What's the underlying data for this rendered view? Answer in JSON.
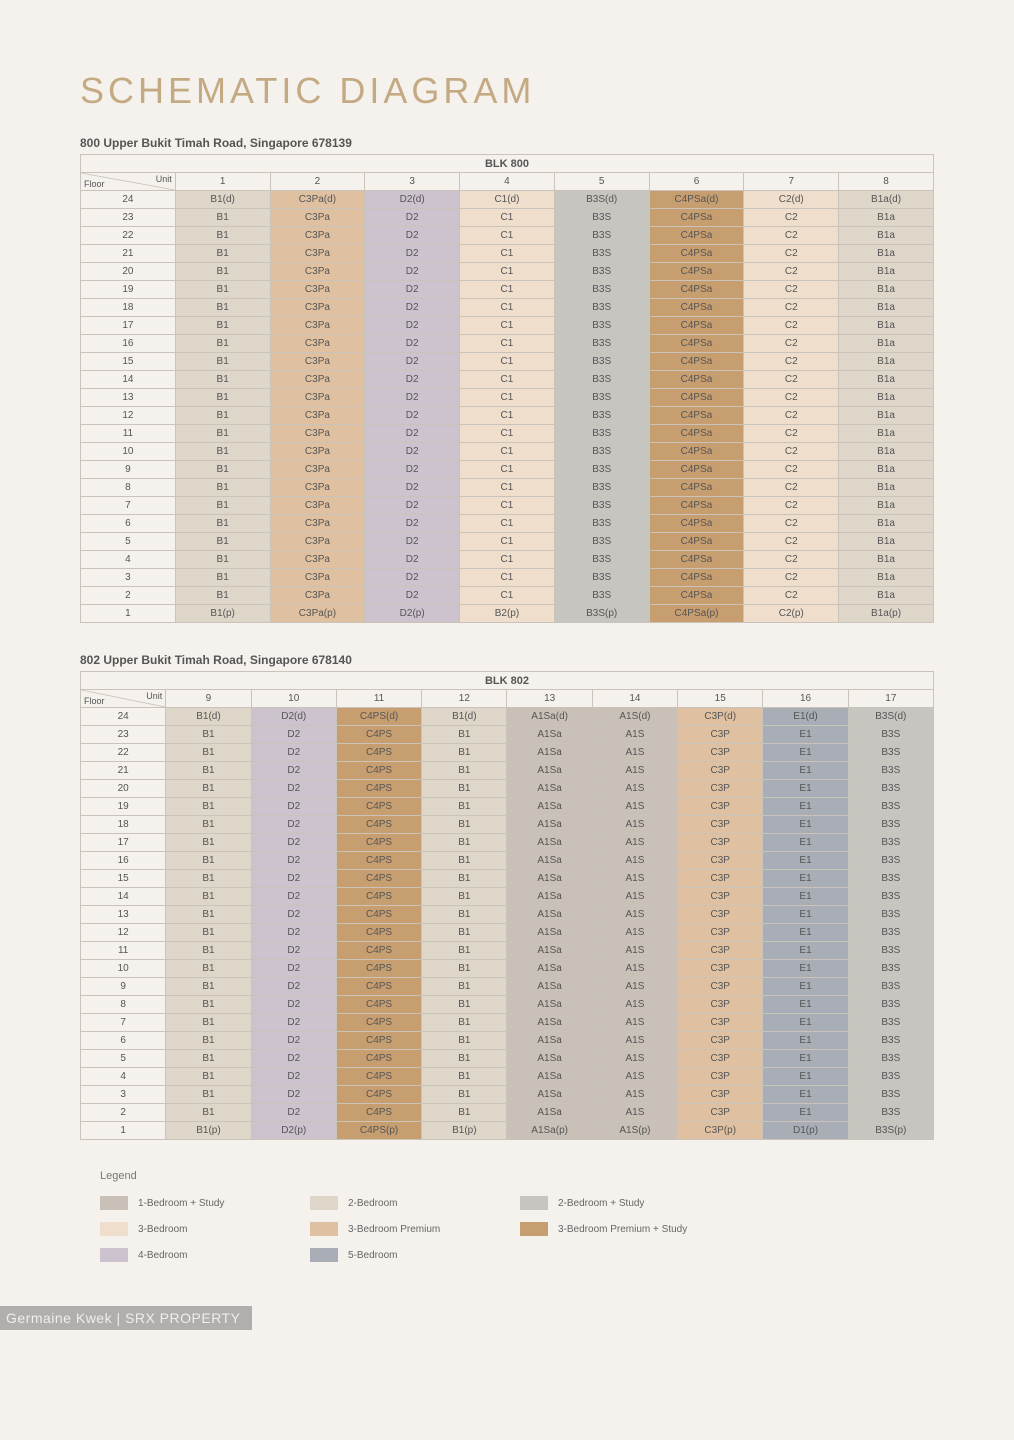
{
  "title": "SCHEMATIC DIAGRAM",
  "colors": {
    "page_bg": "#f5f2ed",
    "title": "#c4aa83",
    "border": "#c9c3b9",
    "text": "#555555"
  },
  "unitTypeColors": {
    "A": "#c9c1b7",
    "B": "#ded6c9",
    "BS": "#c7c5c0",
    "C": "#efdecb",
    "CP": "#dfc0a0",
    "CPS": "#c79e70",
    "D": "#cdc3cf",
    "E": "#a9adb6"
  },
  "legend": [
    {
      "colorKey": "A",
      "label": "1-Bedroom + Study"
    },
    {
      "colorKey": "B",
      "label": "2-Bedroom"
    },
    {
      "colorKey": "BS",
      "label": "2-Bedroom + Study"
    },
    {
      "colorKey": "C",
      "label": "3-Bedroom"
    },
    {
      "colorKey": "CP",
      "label": "3-Bedroom Premium"
    },
    {
      "colorKey": "CPS",
      "label": "3-Bedroom Premium + Study"
    },
    {
      "colorKey": "D",
      "label": "4-Bedroom"
    },
    {
      "colorKey": "E",
      "label": "5-Bedroom"
    }
  ],
  "cornerLabels": {
    "floor": "Floor",
    "unit": "Unit"
  },
  "tables": [
    {
      "address": "800 Upper Bukit Timah Road, Singapore 678139",
      "blk": "BLK 800",
      "units": [
        "1",
        "2",
        "3",
        "4",
        "5",
        "6",
        "7",
        "8"
      ],
      "topFloor": 24,
      "bottomFloor": 1,
      "columns": [
        {
          "type": "B",
          "base": "B1",
          "top": "B1(d)",
          "bot": "B1(p)"
        },
        {
          "type": "CP",
          "base": "C3Pa",
          "top": "C3Pa(d)",
          "bot": "C3Pa(p)"
        },
        {
          "type": "D",
          "base": "D2",
          "top": "D2(d)",
          "bot": "D2(p)"
        },
        {
          "type": "C",
          "base": "C1",
          "top": "C1(d)",
          "bot": "B2(p)"
        },
        {
          "type": "BS",
          "base": "B3S",
          "top": "B3S(d)",
          "bot": "B3S(p)"
        },
        {
          "type": "CPS",
          "base": "C4PSa",
          "top": "C4PSa(d)",
          "bot": "C4PSa(p)"
        },
        {
          "type": "C",
          "base": "C2",
          "top": "C2(d)",
          "bot": "C2(p)"
        },
        {
          "type": "B",
          "base": "B1a",
          "top": "B1a(d)",
          "bot": "B1a(p)"
        }
      ]
    },
    {
      "address": "802 Upper Bukit Timah Road, Singapore 678140",
      "blk": "BLK 802",
      "units": [
        "9",
        "10",
        "11",
        "12",
        "13",
        "14",
        "15",
        "16",
        "17"
      ],
      "topFloor": 24,
      "bottomFloor": 1,
      "columns": [
        {
          "type": "B",
          "base": "B1",
          "top": "B1(d)",
          "bot": "B1(p)"
        },
        {
          "type": "D",
          "base": "D2",
          "top": "D2(d)",
          "bot": "D2(p)"
        },
        {
          "type": "CPS",
          "base": "C4PS",
          "top": "C4PS(d)",
          "bot": "C4PS(p)"
        },
        {
          "type": "B",
          "base": "B1",
          "top": "B1(d)",
          "bot": "B1(p)"
        },
        {
          "type": "A",
          "base": "A1Sa",
          "top": "A1Sa(d)",
          "bot": "A1Sa(p)"
        },
        {
          "type": "A",
          "base": "A1S",
          "top": "A1S(d)",
          "bot": "A1S(p)"
        },
        {
          "type": "CP",
          "base": "C3P",
          "top": "C3P(d)",
          "bot": "C3P(p)"
        },
        {
          "type": "E",
          "base": "E1",
          "top": "E1(d)",
          "bot": "D1(p)"
        },
        {
          "type": "BS",
          "base": "B3S",
          "top": "B3S(d)",
          "bot": "B3S(p)"
        }
      ]
    }
  ],
  "legendTitle": "Legend",
  "watermark": "Germaine Kwek | SRX PROPERTY"
}
